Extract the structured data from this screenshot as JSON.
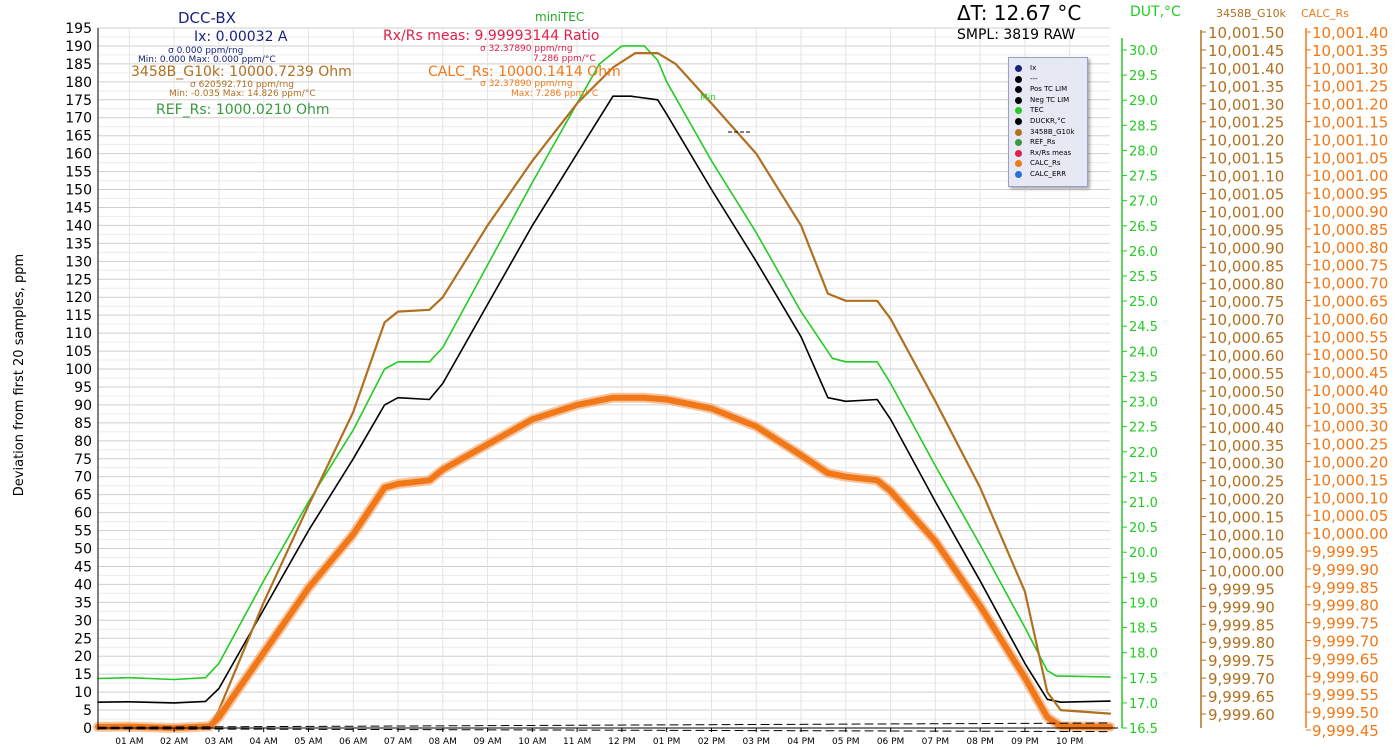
{
  "header": {
    "app_title": "DCC-BX",
    "ix": "Ix: 0.00032 A",
    "ix_sigma": "σ 0.000 ppm/rng",
    "ix_minmax": "Min: 0.000 Max: 0.000 ppm/°C",
    "g10k": "3458B_G10k: 10000.7239 Ohm",
    "g10k_sigma": "σ 620592.710 ppm/rng",
    "g10k_minmax": "Min: -0.035 Max: 14.826 ppm/°C",
    "ref_rs": "REF_Rs: 1000.0210 Ohm",
    "minitec": "miniTEC",
    "rxrs": "Rx/Rs meas: 9.99993144 Ratio",
    "rxrs_sigma": "σ 32.37890 ppm/rng",
    "rxrs_tc": "7.286 ppm/°C",
    "calc": "CALC_Rs: 10000.1414 Ohm",
    "calc_sigma": "σ 32.37890 ppm/rng",
    "calc_max": "Max: 7.286 ppm/°C",
    "delta_t": "ΔT: 12.67 °C",
    "smpl": "SMPL: 3819 RAW",
    "dut_axis_title": "DUT,°C",
    "g10k_axis_title": "3458B_G10k",
    "calc_axis_title": "CALC_Rs",
    "min_marker": "Min"
  },
  "colors": {
    "black": "#000000",
    "green": "#22cc22",
    "brown": "#b07020",
    "orange": "#f07818",
    "navy": "#1a237e",
    "crimson": "#e0204a",
    "refgreen": "#3a9a40",
    "blue": "#2a6fd6",
    "grid": "#d6d6d6"
  },
  "legend": [
    {
      "label": "Ix",
      "color": "#1a237e"
    },
    {
      "label": "---",
      "color": "#000000"
    },
    {
      "label": "Pos TC LIM",
      "color": "#000000"
    },
    {
      "label": "Neg TC LIM",
      "color": "#000000"
    },
    {
      "label": "TEC",
      "color": "#22cc22"
    },
    {
      "label": "DUCKR,°C",
      "color": "#000000"
    },
    {
      "label": "3458B_G10k",
      "color": "#b07020"
    },
    {
      "label": "REF_Rs",
      "color": "#3a9a40"
    },
    {
      "label": "Rx/Rs meas",
      "color": "#e0204a"
    },
    {
      "label": "CALC_Rs",
      "color": "#f07818"
    },
    {
      "label": "CALC_ERR",
      "color": "#2a6fd6"
    }
  ],
  "chart_data": {
    "type": "line",
    "ylabel": "Deviation from first 20 samples, ppm",
    "ylim": [
      0,
      195
    ],
    "y_ticks": [
      "0",
      "5",
      "10",
      "15",
      "20",
      "25",
      "30",
      "35",
      "40",
      "45",
      "50",
      "55",
      "60",
      "65",
      "70",
      "75",
      "80",
      "85",
      "90",
      "95",
      "100",
      "105",
      "110",
      "115",
      "120",
      "125",
      "130",
      "135",
      "140",
      "145",
      "150",
      "155",
      "160",
      "165",
      "170",
      "175",
      "180",
      "185",
      "190",
      "195"
    ],
    "x_ticks": [
      "01 AM",
      "02 AM",
      "03 AM",
      "04 AM",
      "05 AM",
      "06 AM",
      "07 AM",
      "08 AM",
      "09 AM",
      "10 AM",
      "11 AM",
      "12 PM",
      "01 PM",
      "02 PM",
      "03 PM",
      "04 PM",
      "05 PM",
      "06 PM",
      "07 PM",
      "08 PM",
      "09 PM",
      "10 PM"
    ],
    "xlim": [
      0.3,
      22.9
    ],
    "dut_ticks": [
      "16.5",
      "17.0",
      "17.5",
      "18.0",
      "18.5",
      "19.0",
      "19.5",
      "20.0",
      "20.5",
      "21.0",
      "21.5",
      "22.0",
      "22.5",
      "23.0",
      "23.5",
      "24.0",
      "24.5",
      "25.0",
      "25.5",
      "26.0",
      "26.5",
      "27.0",
      "27.5",
      "28.0",
      "28.5",
      "29.0",
      "29.5",
      "30.0"
    ],
    "dut_range": [
      16.5,
      30.0
    ],
    "g10k_ticks": [
      "10,001.50",
      "10,001.45",
      "10,001.40",
      "10,001.35",
      "10,001.30",
      "10,001.25",
      "10,001.20",
      "10,001.15",
      "10,001.10",
      "10,001.05",
      "10,001.00",
      "10,000.95",
      "10,000.90",
      "10,000.85",
      "10,000.80",
      "10,000.75",
      "10,000.70",
      "10,000.65",
      "10,000.60",
      "10,000.55",
      "10,000.50",
      "10,000.45",
      "10,000.40",
      "10,000.35",
      "10,000.30",
      "10,000.25",
      "10,000.20",
      "10,000.15",
      "10,000.10",
      "10,000.05",
      "10,000.00",
      "9,999.95",
      "9,999.90",
      "9,999.85",
      "9,999.80",
      "9,999.75",
      "9,999.70",
      "9,999.65",
      "9,999.60"
    ],
    "calc_ticks": [
      "10,001.40",
      "10,001.35",
      "10,001.30",
      "10,001.25",
      "10,001.20",
      "10,001.15",
      "10,001.10",
      "10,001.05",
      "10,001.00",
      "10,000.95",
      "10,000.90",
      "10,000.85",
      "10,000.80",
      "10,000.75",
      "10,000.70",
      "10,000.65",
      "10,000.60",
      "10,000.55",
      "10,000.50",
      "10,000.45",
      "10,000.40",
      "10,000.35",
      "10,000.30",
      "10,000.25",
      "10,000.20",
      "10,000.15",
      "10,000.10",
      "10,000.05",
      "10,000.00",
      "9,999.95",
      "9,999.90",
      "9,999.85",
      "9,999.80",
      "9,999.75",
      "9,999.70",
      "9,999.65",
      "9,999.60",
      "9,999.55",
      "9,999.50",
      "9,999.45"
    ],
    "grid": true,
    "legend_position": "top-right",
    "series": [
      {
        "name": "TEC",
        "color": "#22cc22",
        "width": 1.6,
        "points": [
          [
            0.3,
            13.8
          ],
          [
            1.0,
            14.0
          ],
          [
            2.0,
            13.5
          ],
          [
            2.7,
            14.0
          ],
          [
            3.0,
            18.0
          ],
          [
            4.0,
            41.0
          ],
          [
            5.0,
            63.0
          ],
          [
            6.0,
            83.0
          ],
          [
            6.7,
            100.0
          ],
          [
            7.0,
            102.0
          ],
          [
            7.7,
            102.0
          ],
          [
            8.0,
            106.0
          ],
          [
            9.0,
            129.0
          ],
          [
            10.0,
            152.0
          ],
          [
            11.0,
            174.0
          ],
          [
            11.5,
            185.0
          ],
          [
            12.0,
            190.0
          ],
          [
            12.5,
            190.0
          ],
          [
            12.8,
            186.0
          ],
          [
            13.0,
            180.0
          ],
          [
            14.0,
            158.0
          ],
          [
            15.0,
            138.0
          ],
          [
            16.0,
            116.0
          ],
          [
            16.7,
            103.0
          ],
          [
            17.0,
            102.0
          ],
          [
            17.7,
            102.0
          ],
          [
            18.0,
            96.0
          ],
          [
            19.0,
            73.0
          ],
          [
            20.0,
            51.0
          ],
          [
            21.0,
            28.0
          ],
          [
            21.5,
            16.0
          ],
          [
            21.7,
            14.5
          ],
          [
            22.9,
            14.2
          ]
        ]
      },
      {
        "name": "DUCKR,°C",
        "color": "#000000",
        "width": 1.6,
        "points": [
          [
            0.3,
            7.2
          ],
          [
            1.0,
            7.3
          ],
          [
            2.0,
            7.0
          ],
          [
            2.7,
            7.4
          ],
          [
            3.0,
            11.0
          ],
          [
            4.0,
            33.0
          ],
          [
            5.0,
            55.0
          ],
          [
            6.0,
            75.0
          ],
          [
            6.7,
            90.0
          ],
          [
            7.0,
            92.0
          ],
          [
            7.7,
            91.5
          ],
          [
            8.0,
            96.0
          ],
          [
            9.0,
            118.0
          ],
          [
            10.0,
            140.0
          ],
          [
            11.0,
            160.0
          ],
          [
            11.8,
            176.0
          ],
          [
            12.2,
            176.0
          ],
          [
            12.8,
            175.0
          ],
          [
            13.0,
            171.0
          ],
          [
            14.0,
            150.0
          ],
          [
            15.0,
            130.0
          ],
          [
            16.0,
            109.0
          ],
          [
            16.6,
            92.0
          ],
          [
            17.0,
            91.0
          ],
          [
            17.7,
            91.5
          ],
          [
            18.0,
            86.0
          ],
          [
            19.0,
            63.0
          ],
          [
            20.0,
            41.0
          ],
          [
            21.0,
            18.0
          ],
          [
            21.5,
            8.0
          ],
          [
            21.8,
            7.2
          ],
          [
            22.9,
            7.5
          ]
        ]
      },
      {
        "name": "3458B_G10k",
        "color": "#b07020",
        "width": 2.2,
        "points": [
          [
            0.3,
            0.3
          ],
          [
            1.0,
            0.2
          ],
          [
            2.0,
            0.0
          ],
          [
            2.8,
            0.6
          ],
          [
            3.0,
            5.0
          ],
          [
            4.0,
            35.0
          ],
          [
            5.0,
            62.0
          ],
          [
            6.0,
            88.0
          ],
          [
            6.7,
            113.0
          ],
          [
            7.0,
            116.0
          ],
          [
            7.7,
            116.5
          ],
          [
            8.0,
            120.0
          ],
          [
            9.0,
            140.0
          ],
          [
            10.0,
            158.0
          ],
          [
            11.0,
            174.0
          ],
          [
            11.8,
            184.0
          ],
          [
            12.3,
            188.0
          ],
          [
            12.8,
            188.0
          ],
          [
            13.2,
            185.0
          ],
          [
            14.0,
            174.0
          ],
          [
            15.0,
            160.0
          ],
          [
            16.0,
            140.0
          ],
          [
            16.6,
            121.0
          ],
          [
            17.0,
            119.0
          ],
          [
            17.7,
            119.0
          ],
          [
            18.0,
            114.0
          ],
          [
            19.0,
            91.0
          ],
          [
            20.0,
            67.0
          ],
          [
            21.0,
            38.0
          ],
          [
            21.5,
            10.0
          ],
          [
            21.8,
            5.0
          ],
          [
            22.9,
            4.0
          ]
        ]
      },
      {
        "name": "CALC_Rs",
        "color": "#f07818",
        "width": 6.0,
        "points": [
          [
            0.3,
            0.3
          ],
          [
            1.0,
            0.4
          ],
          [
            2.0,
            0.0
          ],
          [
            2.8,
            0.5
          ],
          [
            3.0,
            3.0
          ],
          [
            4.0,
            21.0
          ],
          [
            5.0,
            39.0
          ],
          [
            6.0,
            54.0
          ],
          [
            6.7,
            67.0
          ],
          [
            7.0,
            68.0
          ],
          [
            7.7,
            69.0
          ],
          [
            8.0,
            72.0
          ],
          [
            9.0,
            79.0
          ],
          [
            10.0,
            86.0
          ],
          [
            11.0,
            90.0
          ],
          [
            11.8,
            92.0
          ],
          [
            12.5,
            92.0
          ],
          [
            13.0,
            91.5
          ],
          [
            14.0,
            89.0
          ],
          [
            15.0,
            84.0
          ],
          [
            16.0,
            76.0
          ],
          [
            16.6,
            71.0
          ],
          [
            17.0,
            70.0
          ],
          [
            17.7,
            69.0
          ],
          [
            18.0,
            66.0
          ],
          [
            19.0,
            52.0
          ],
          [
            20.0,
            34.0
          ],
          [
            21.0,
            14.0
          ],
          [
            21.5,
            3.0
          ],
          [
            21.8,
            0.5
          ],
          [
            22.9,
            0.3
          ]
        ]
      },
      {
        "name": "Pos TC LIM",
        "color": "#000000",
        "width": 1.0,
        "dash": true,
        "points": [
          [
            0.3,
            0.2
          ],
          [
            22.9,
            1.4
          ]
        ]
      },
      {
        "name": "Neg TC LIM",
        "color": "#000000",
        "width": 1.0,
        "dash": true,
        "points": [
          [
            0.3,
            -0.2
          ],
          [
            22.9,
            -1.0
          ]
        ]
      }
    ]
  }
}
